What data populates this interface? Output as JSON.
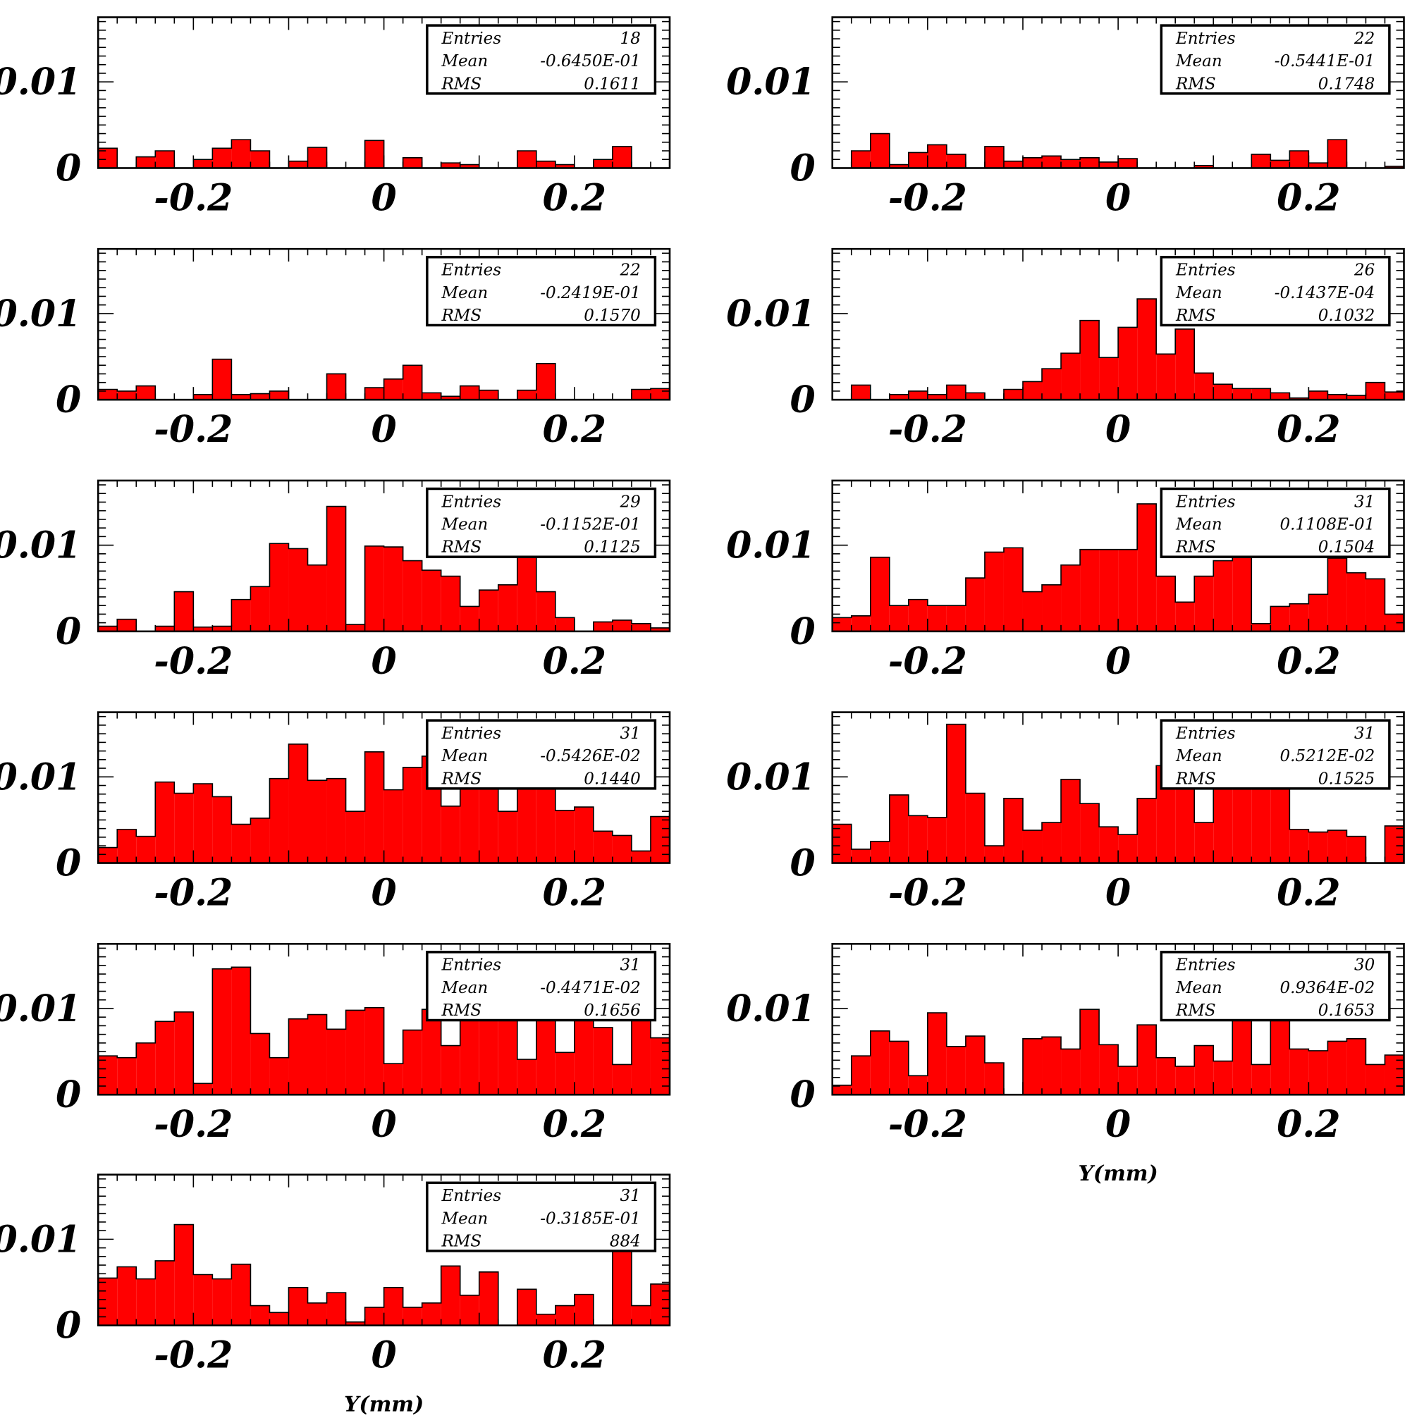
{
  "figure": {
    "x_axis_title": "Y(mm)",
    "colors": {
      "fill": "#ff0000",
      "line": "#000000",
      "background": "#ffffff"
    }
  },
  "chart_data": [
    {
      "type": "bar",
      "xlim": [
        -0.3,
        0.3
      ],
      "ylim": [
        0,
        0.0175
      ],
      "xticks": [
        "-0.2",
        "0",
        "0.2"
      ],
      "yticks": [
        "0",
        "0.01"
      ],
      "xlabel": "",
      "stats": {
        "entries_label": "Entries",
        "entries": "18",
        "mean_label": "Mean",
        "mean": "-0.6450E-01",
        "rms_label": "RMS",
        "rms": "0.1611"
      },
      "values": [
        0.0023,
        0,
        0.0013,
        0.002,
        0,
        0.001,
        0.0023,
        0.0033,
        0.002,
        0,
        0.0008,
        0.0024,
        0,
        0,
        0.0032,
        0,
        0.0012,
        0,
        0.0006,
        0.0004,
        0,
        0,
        0.002,
        0.0008,
        0.0004,
        0,
        0.001,
        0.0025,
        0,
        0
      ]
    },
    {
      "type": "bar",
      "xlim": [
        -0.3,
        0.3
      ],
      "ylim": [
        0,
        0.0175
      ],
      "xticks": [
        "-0.2",
        "0",
        "0.2"
      ],
      "yticks": [
        "0",
        "0.01"
      ],
      "xlabel": "",
      "stats": {
        "entries_label": "Entries",
        "entries": "22",
        "mean_label": "Mean",
        "mean": "-0.5441E-01",
        "rms_label": "RMS",
        "rms": "0.1748"
      },
      "values": [
        0,
        0.002,
        0.004,
        0.0004,
        0.0018,
        0.0027,
        0.0016,
        0,
        0.0025,
        0.0008,
        0.0012,
        0.0014,
        0.001,
        0.0012,
        0.0007,
        0.0011,
        0,
        0,
        0,
        0.0003,
        0,
        0,
        0.0016,
        0.0009,
        0.002,
        0.0006,
        0.0033,
        0,
        0,
        0.0002
      ]
    },
    {
      "type": "bar",
      "xlim": [
        -0.3,
        0.3
      ],
      "ylim": [
        0,
        0.0175
      ],
      "xticks": [
        "-0.2",
        "0",
        "0.2"
      ],
      "yticks": [
        "0",
        "0.01"
      ],
      "xlabel": "",
      "stats": {
        "entries_label": "Entries",
        "entries": "22",
        "mean_label": "Mean",
        "mean": "-0.2419E-01",
        "rms_label": "RMS",
        "rms": "0.1570"
      },
      "values": [
        0.0012,
        0.001,
        0.0016,
        0,
        0,
        0.0006,
        0.0047,
        0.0006,
        0.0007,
        0.001,
        0,
        0,
        0.003,
        0,
        0.0014,
        0.0024,
        0.004,
        0.0008,
        0.0004,
        0.0016,
        0.0011,
        0,
        0.0011,
        0.0042,
        0,
        0,
        0,
        0,
        0.0012,
        0.0013
      ]
    },
    {
      "type": "bar",
      "xlim": [
        -0.3,
        0.3
      ],
      "ylim": [
        0,
        0.0175
      ],
      "xticks": [
        "-0.2",
        "0",
        "0.2"
      ],
      "yticks": [
        "0",
        "0.01"
      ],
      "xlabel": "",
      "stats": {
        "entries_label": "Entries",
        "entries": "26",
        "mean_label": "Mean",
        "mean": "-0.1437E-04",
        "rms_label": "RMS",
        "rms": "0.1032"
      },
      "values": [
        0,
        0.0017,
        0,
        0.0006,
        0.001,
        0.0006,
        0.0017,
        0.0008,
        0,
        0.0012,
        0.0021,
        0.0036,
        0.0054,
        0.0092,
        0.0049,
        0.0084,
        0.0117,
        0.0053,
        0.0082,
        0.0031,
        0.0018,
        0.0013,
        0.0013,
        0.0008,
        0.0002,
        0.001,
        0.0006,
        0.0005,
        0.002,
        0.0009
      ]
    },
    {
      "type": "bar",
      "xlim": [
        -0.3,
        0.3
      ],
      "ylim": [
        0,
        0.0175
      ],
      "xticks": [
        "-0.2",
        "0",
        "0.2"
      ],
      "yticks": [
        "0",
        "0.01"
      ],
      "xlabel": "",
      "stats": {
        "entries_label": "Entries",
        "entries": "29",
        "mean_label": "Mean",
        "mean": "-0.1152E-01",
        "rms_label": "RMS",
        "rms": "0.1125"
      },
      "values": [
        0.0006,
        0.0014,
        0,
        0.0006,
        0.0046,
        0.0005,
        0.0006,
        0.0037,
        0.0052,
        0.0102,
        0.0096,
        0.0077,
        0.0145,
        0.0008,
        0.0099,
        0.0098,
        0.0082,
        0.0071,
        0.0064,
        0.0029,
        0.0048,
        0.0054,
        0.0092,
        0.0046,
        0.0016,
        0,
        0.0011,
        0.0013,
        0.0009,
        0.0004
      ]
    },
    {
      "type": "bar",
      "xlim": [
        -0.3,
        0.3
      ],
      "ylim": [
        0,
        0.0175
      ],
      "xticks": [
        "-0.2",
        "0",
        "0.2"
      ],
      "yticks": [
        "0",
        "0.01"
      ],
      "xlabel": "",
      "stats": {
        "entries_label": "Entries",
        "entries": "31",
        "mean_label": "Mean",
        "mean": "0.1108E-01",
        "rms_label": "RMS",
        "rms": "0.1504"
      },
      "values": [
        0.0016,
        0.0018,
        0.0086,
        0.003,
        0.0037,
        0.003,
        0.003,
        0.0062,
        0.0092,
        0.0097,
        0.0046,
        0.0054,
        0.0077,
        0.0095,
        0.0095,
        0.0095,
        0.0148,
        0.0064,
        0.0034,
        0.0064,
        0.0082,
        0.0119,
        0.0009,
        0.0029,
        0.0032,
        0.0043,
        0.0085,
        0.0068,
        0.0061,
        0.002
      ]
    },
    {
      "type": "bar",
      "xlim": [
        -0.3,
        0.3
      ],
      "ylim": [
        0,
        0.0175
      ],
      "xticks": [
        "-0.2",
        "0",
        "0.2"
      ],
      "yticks": [
        "0",
        "0.01"
      ],
      "xlabel": "",
      "stats": {
        "entries_label": "Entries",
        "entries": "31",
        "mean_label": "Mean",
        "mean": "-0.5426E-02",
        "rms_label": "RMS",
        "rms": "0.1440"
      },
      "values": [
        0.0018,
        0.0039,
        0.0031,
        0.0094,
        0.0081,
        0.0092,
        0.0077,
        0.0045,
        0.0052,
        0.0098,
        0.0138,
        0.0096,
        0.0098,
        0.006,
        0.0129,
        0.0085,
        0.0111,
        0.0124,
        0.0066,
        0.0138,
        0.0131,
        0.006,
        0.0127,
        0.0112,
        0.0061,
        0.0065,
        0.0037,
        0.0032,
        0.0014,
        0.0054
      ]
    },
    {
      "type": "bar",
      "xlim": [
        -0.3,
        0.3
      ],
      "ylim": [
        0,
        0.0175
      ],
      "xticks": [
        "-0.2",
        "0",
        "0.2"
      ],
      "yticks": [
        "0",
        "0.01"
      ],
      "xlabel": "",
      "stats": {
        "entries_label": "Entries",
        "entries": "31",
        "mean_label": "Mean",
        "mean": "0.5212E-02",
        "rms_label": "RMS",
        "rms": "0.1525"
      },
      "values": [
        0.0045,
        0.0016,
        0.0025,
        0.0079,
        0.0055,
        0.0053,
        0.0161,
        0.0081,
        0.002,
        0.0075,
        0.0038,
        0.0047,
        0.0097,
        0.0069,
        0.0042,
        0.0033,
        0.0075,
        0.0113,
        0.0105,
        0.0047,
        0.0117,
        0.0146,
        0.0119,
        0.0119,
        0.0039,
        0.0036,
        0.0038,
        0.0031,
        0,
        0.0043
      ]
    },
    {
      "type": "bar",
      "xlim": [
        -0.3,
        0.3
      ],
      "ylim": [
        0,
        0.0175
      ],
      "xticks": [
        "-0.2",
        "0",
        "0.2"
      ],
      "yticks": [
        "0",
        "0.01"
      ],
      "xlabel": "",
      "stats": {
        "entries_label": "Entries",
        "entries": "31",
        "mean_label": "Mean",
        "mean": "-0.4471E-02",
        "rms_label": "RMS",
        "rms": "0.1656"
      },
      "values": [
        0.0045,
        0.0043,
        0.006,
        0.0085,
        0.0096,
        0.0013,
        0.0146,
        0.0148,
        0.0071,
        0.0043,
        0.0088,
        0.0093,
        0.0076,
        0.0098,
        0.0101,
        0.0036,
        0.0075,
        0.0099,
        0.0057,
        0.0095,
        0.0087,
        0.0093,
        0.0041,
        0.0106,
        0.0049,
        0.0088,
        0.0078,
        0.0035,
        0.0091,
        0.0066
      ]
    },
    {
      "type": "bar",
      "xlim": [
        -0.3,
        0.3
      ],
      "ylim": [
        0,
        0.0175
      ],
      "xticks": [
        "-0.2",
        "0",
        "0.2"
      ],
      "yticks": [
        "0",
        "0.01"
      ],
      "xlabel": "Y(mm)",
      "stats": {
        "entries_label": "Entries",
        "entries": "30",
        "mean_label": "Mean",
        "mean": "0.9364E-02",
        "rms_label": "RMS",
        "rms": "0.1653"
      },
      "values": [
        0.0011,
        0.0045,
        0.0074,
        0.0062,
        0.0022,
        0.0095,
        0.0056,
        0.0068,
        0.0037,
        0,
        0.0065,
        0.0067,
        0.0053,
        0.0099,
        0.0058,
        0.0033,
        0.0081,
        0.0043,
        0.0033,
        0.0057,
        0.0039,
        0.0134,
        0.0035,
        0.0107,
        0.0053,
        0.0051,
        0.0062,
        0.0065,
        0.0035,
        0.0046
      ]
    },
    {
      "type": "bar",
      "xlim": [
        -0.3,
        0.3
      ],
      "ylim": [
        0,
        0.0175
      ],
      "xticks": [
        "-0.2",
        "0",
        "0.2"
      ],
      "yticks": [
        "0",
        "0.01"
      ],
      "xlabel": "Y(mm)",
      "stats": {
        "entries_label": "Entries",
        "entries": "31",
        "mean_label": "Mean",
        "mean": "-0.3185E-01",
        "rms_label": "RMS",
        "rms": "884"
      },
      "values": [
        0.0055,
        0.0068,
        0.0054,
        0.0075,
        0.0117,
        0.0059,
        0.0054,
        0.0071,
        0.0023,
        0.0015,
        0.0044,
        0.0026,
        0.0038,
        0.0004,
        0.0021,
        0.0044,
        0.0021,
        0.0026,
        0.0069,
        0.0035,
        0.0062,
        0,
        0.0042,
        0.0013,
        0.0023,
        0.0036,
        0,
        0.0107,
        0.0023,
        0.0048
      ]
    }
  ]
}
